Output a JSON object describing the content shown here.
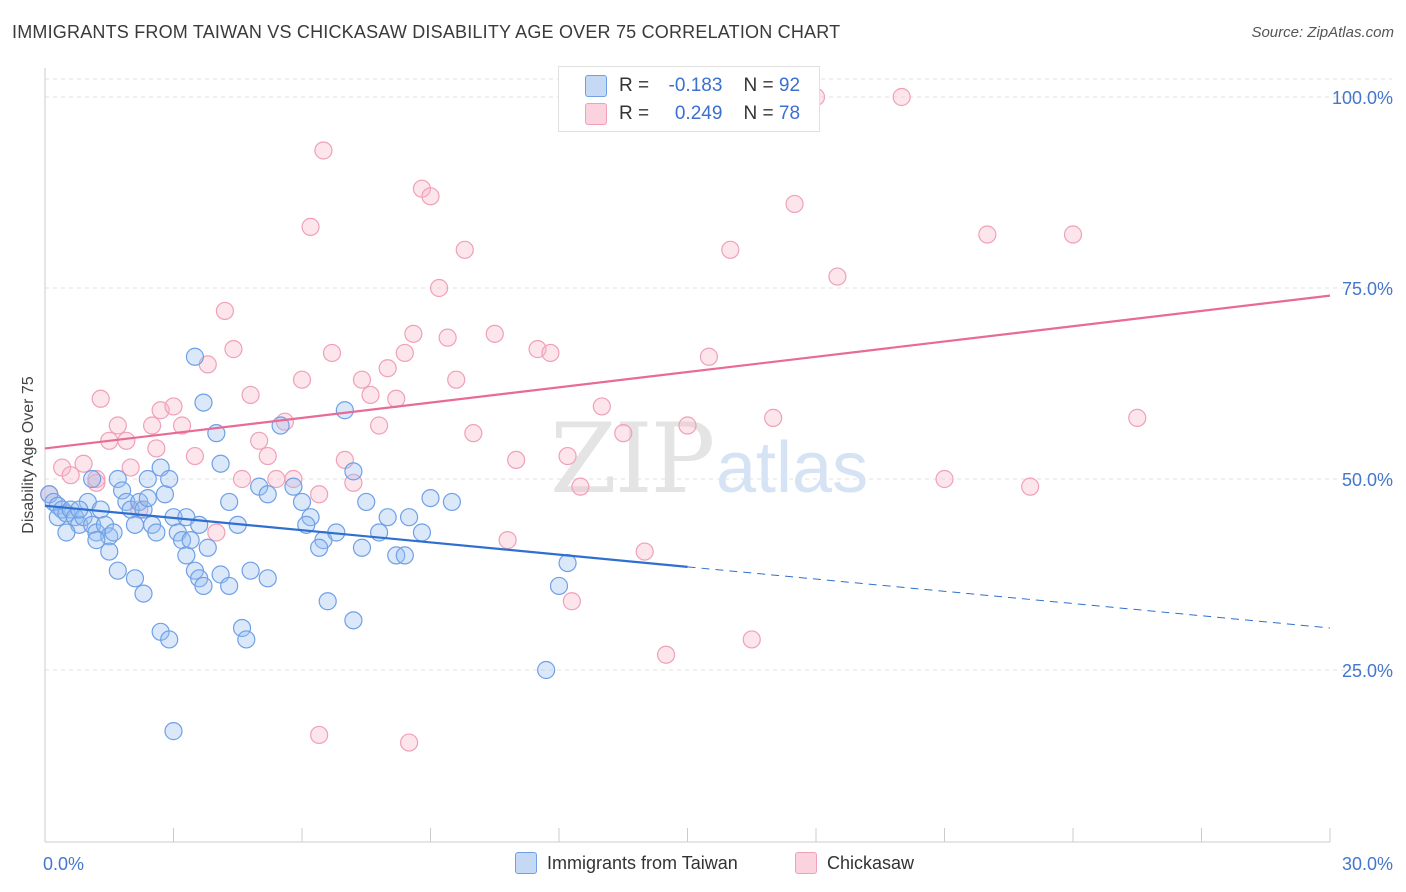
{
  "title": "IMMIGRANTS FROM TAIWAN VS CHICKASAW DISABILITY AGE OVER 75 CORRELATION CHART",
  "source": "Source: ZipAtlas.com",
  "watermark": "ZIPatlas",
  "stats": {
    "row1": {
      "r_label": "R =",
      "r_value": "-0.183",
      "n_label": "N =",
      "n_value": "92"
    },
    "row2": {
      "r_label": "R =",
      "r_value": "0.249",
      "n_label": "N =",
      "n_value": "78"
    }
  },
  "chart_data": {
    "type": "scatter",
    "title": "IMMIGRANTS FROM TAIWAN VS CHICKASAW DISABILITY AGE OVER 75 CORRELATION CHART",
    "xlabel": "",
    "ylabel": "Disability Age Over 75",
    "xlim": [
      0,
      30
    ],
    "ylim": [
      0,
      105
    ],
    "x_tick_labels": [
      "0.0%",
      "30.0%"
    ],
    "y_tick_labels": [
      "100.0%",
      "75.0%",
      "50.0%",
      "25.0%"
    ],
    "y_ticks": [
      100,
      75,
      50,
      25
    ],
    "grid": true,
    "legend_position": "bottom",
    "colors": {
      "taiwan": "#6fa0e6",
      "chickasaw": "#f0a0b8",
      "taiwan_line": "#2f6fcf",
      "chickasaw_line": "#e86a95"
    },
    "series": [
      {
        "name": "Immigrants from Taiwan",
        "trend": {
          "x0": 0,
          "y0": 46.5,
          "x1": 15,
          "y1": 38.5,
          "dashed_to_x": 30,
          "dashed_to_y": 30.5
        },
        "points": [
          [
            0.1,
            48
          ],
          [
            0.2,
            47
          ],
          [
            0.3,
            46.5
          ],
          [
            0.3,
            45
          ],
          [
            0.4,
            46
          ],
          [
            0.5,
            45.5
          ],
          [
            0.6,
            46
          ],
          [
            0.7,
            45
          ],
          [
            0.8,
            44
          ],
          [
            0.9,
            45
          ],
          [
            1.0,
            47
          ],
          [
            1.1,
            44
          ],
          [
            1.2,
            43
          ],
          [
            1.3,
            46
          ],
          [
            1.4,
            44
          ],
          [
            1.5,
            42.5
          ],
          [
            1.6,
            43
          ],
          [
            1.7,
            50
          ],
          [
            1.8,
            48.5
          ],
          [
            1.9,
            47
          ],
          [
            2.0,
            46
          ],
          [
            2.1,
            44
          ],
          [
            2.2,
            47
          ],
          [
            2.3,
            46
          ],
          [
            2.4,
            47.5
          ],
          [
            2.5,
            44
          ],
          [
            2.6,
            43
          ],
          [
            2.7,
            51.5
          ],
          [
            2.8,
            48
          ],
          [
            2.9,
            50
          ],
          [
            3.0,
            45
          ],
          [
            3.1,
            43
          ],
          [
            3.2,
            42
          ],
          [
            3.3,
            40
          ],
          [
            3.4,
            42
          ],
          [
            3.5,
            38
          ],
          [
            3.6,
            37
          ],
          [
            3.7,
            36
          ],
          [
            4.0,
            56
          ],
          [
            4.1,
            52
          ],
          [
            4.3,
            47
          ],
          [
            4.5,
            44
          ],
          [
            4.8,
            38
          ],
          [
            5.0,
            49
          ],
          [
            5.2,
            48
          ],
          [
            5.5,
            57
          ],
          [
            5.8,
            49
          ],
          [
            6.0,
            47
          ],
          [
            6.2,
            45
          ],
          [
            6.5,
            42
          ],
          [
            6.8,
            43
          ],
          [
            7.0,
            59
          ],
          [
            7.2,
            51
          ],
          [
            7.5,
            47
          ],
          [
            7.8,
            43
          ],
          [
            8.0,
            45
          ],
          [
            8.2,
            40
          ],
          [
            8.5,
            45
          ],
          [
            8.8,
            43
          ],
          [
            9.0,
            47.5
          ],
          [
            9.5,
            47
          ],
          [
            1.2,
            42
          ],
          [
            1.5,
            40.5
          ],
          [
            1.7,
            38
          ],
          [
            2.1,
            37
          ],
          [
            2.3,
            35
          ],
          [
            2.7,
            30
          ],
          [
            2.9,
            29
          ],
          [
            3.0,
            17
          ],
          [
            3.3,
            45
          ],
          [
            3.6,
            44
          ],
          [
            3.8,
            41
          ],
          [
            4.1,
            37.5
          ],
          [
            4.3,
            36
          ],
          [
            4.6,
            30.5
          ],
          [
            4.7,
            29
          ],
          [
            5.2,
            37
          ],
          [
            6.6,
            34
          ],
          [
            7.2,
            31.5
          ],
          [
            8.4,
            40
          ],
          [
            11.7,
            25
          ],
          [
            12.0,
            36
          ],
          [
            12.2,
            39
          ],
          [
            6.1,
            44
          ],
          [
            6.4,
            41
          ],
          [
            7.4,
            41
          ],
          [
            2.4,
            50
          ],
          [
            3.5,
            66
          ],
          [
            3.7,
            60
          ],
          [
            1.1,
            50
          ],
          [
            0.5,
            43
          ],
          [
            0.8,
            46
          ]
        ]
      },
      {
        "name": "Chickasaw",
        "trend": {
          "x0": 0,
          "y0": 54,
          "x1": 30,
          "y1": 74
        },
        "points": [
          [
            0.1,
            48
          ],
          [
            0.4,
            51.5
          ],
          [
            0.6,
            50.5
          ],
          [
            0.9,
            52
          ],
          [
            1.2,
            49.5
          ],
          [
            1.3,
            60.5
          ],
          [
            1.5,
            55
          ],
          [
            1.7,
            57
          ],
          [
            1.9,
            55
          ],
          [
            2.0,
            51.5
          ],
          [
            2.2,
            46
          ],
          [
            2.5,
            57
          ],
          [
            2.6,
            54
          ],
          [
            2.7,
            59
          ],
          [
            3.0,
            59.5
          ],
          [
            3.2,
            57
          ],
          [
            3.5,
            53
          ],
          [
            3.8,
            65
          ],
          [
            4.0,
            43
          ],
          [
            4.2,
            72
          ],
          [
            4.4,
            67
          ],
          [
            4.6,
            50
          ],
          [
            4.8,
            61
          ],
          [
            5.0,
            55
          ],
          [
            5.2,
            53
          ],
          [
            5.4,
            50
          ],
          [
            5.6,
            57.5
          ],
          [
            5.8,
            50
          ],
          [
            6.0,
            63
          ],
          [
            6.2,
            83
          ],
          [
            6.4,
            48
          ],
          [
            6.5,
            93
          ],
          [
            6.7,
            66.5
          ],
          [
            7.0,
            52.5
          ],
          [
            7.2,
            49.5
          ],
          [
            7.4,
            63
          ],
          [
            7.6,
            61
          ],
          [
            7.8,
            57
          ],
          [
            8.0,
            64.5
          ],
          [
            8.2,
            60.5
          ],
          [
            8.4,
            66.5
          ],
          [
            8.6,
            69
          ],
          [
            8.8,
            88
          ],
          [
            9.0,
            87
          ],
          [
            9.2,
            75
          ],
          [
            9.4,
            68.5
          ],
          [
            9.6,
            63
          ],
          [
            9.8,
            80
          ],
          [
            10.0,
            56
          ],
          [
            10.5,
            69
          ],
          [
            11.0,
            52.5
          ],
          [
            11.5,
            67
          ],
          [
            11.8,
            66.5
          ],
          [
            12.2,
            53
          ],
          [
            12.5,
            49
          ],
          [
            13.0,
            59.5
          ],
          [
            13.5,
            56
          ],
          [
            14.0,
            40.5
          ],
          [
            14.5,
            27
          ],
          [
            15.0,
            57
          ],
          [
            15.5,
            66
          ],
          [
            16.0,
            80
          ],
          [
            16.5,
            29
          ],
          [
            17.0,
            58
          ],
          [
            17.5,
            86
          ],
          [
            18.0,
            100
          ],
          [
            18.5,
            76.5
          ],
          [
            20.0,
            100
          ],
          [
            21.0,
            50
          ],
          [
            22.0,
            82
          ],
          [
            23.0,
            49
          ],
          [
            24.0,
            82
          ],
          [
            25.5,
            58
          ],
          [
            12.3,
            34
          ],
          [
            10.8,
            42
          ],
          [
            6.4,
            16.5
          ],
          [
            8.5,
            15.5
          ],
          [
            1.2,
            50
          ]
        ]
      }
    ]
  },
  "legend": {
    "taiwan": "Immigrants from Taiwan",
    "chickasaw": "Chickasaw"
  }
}
